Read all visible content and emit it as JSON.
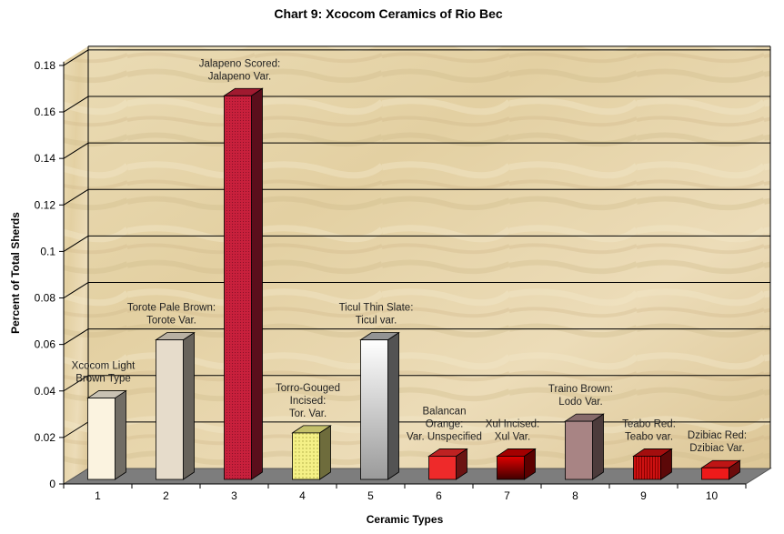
{
  "chart_data": {
    "type": "bar",
    "title": "Chart 9: Xcocom Ceramics of Rio Bec",
    "xlabel": "Ceramic Types",
    "ylabel": "Percent of Total Sherds",
    "ylim": [
      0,
      0.18
    ],
    "yticks": [
      "0",
      "0.02",
      "0.04",
      "0.06",
      "0.08",
      "0.1",
      "0.12",
      "0.14",
      "0.16",
      "0.18"
    ],
    "categories": [
      "1",
      "2",
      "3",
      "4",
      "5",
      "6",
      "7",
      "8",
      "9",
      "10"
    ],
    "values": [
      0.035,
      0.06,
      0.165,
      0.02,
      0.06,
      0.01,
      0.01,
      0.025,
      0.01,
      0.005
    ],
    "labels": [
      [
        "Xcocom Light",
        "Brown Type"
      ],
      [
        "Torote Pale Brown:",
        "Torote Var."
      ],
      [
        "Jalapeno Scored:",
        "Jalapeno Var."
      ],
      [
        "Torro-Gouged",
        "Incised:",
        "Tor. Var."
      ],
      [
        "Ticul Thin Slate:",
        "Ticul var."
      ],
      [
        "Balancan",
        "Orange:",
        "Var. Unspecified"
      ],
      [
        "Xul Incised:",
        "Xul Var."
      ],
      [
        "Traino Brown:",
        "Lodo Var."
      ],
      [
        "Teabo Red:",
        "Teabo var."
      ],
      [
        "Dzibiac Red:",
        "Dzibiac Var."
      ]
    ],
    "bar_colors": [
      "#fbf3e0",
      "#e6dccb",
      "#c8203c",
      "#f4f086",
      "#b8b8b8",
      "#ee2a2a",
      "#cc0000",
      "#a88484",
      "#cc1111",
      "#ee1a1a"
    ],
    "grid": true,
    "legend": "none"
  }
}
